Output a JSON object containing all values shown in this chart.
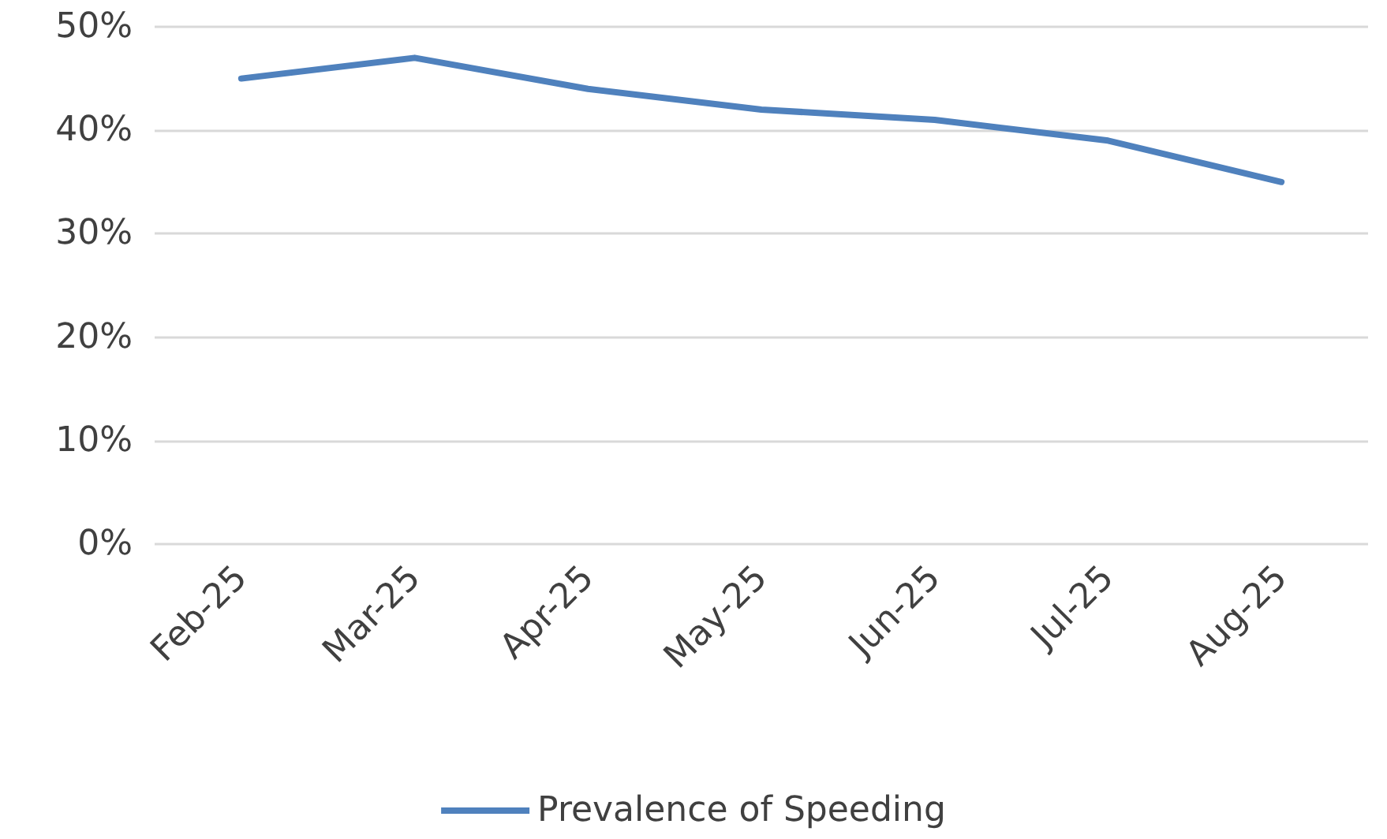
{
  "chart_data": {
    "type": "line",
    "categories": [
      "Feb-25",
      "Mar-25",
      "Apr-25",
      "May-25",
      "Jun-25",
      "Jul-25",
      "Aug-25"
    ],
    "series": [
      {
        "name": "Prevalence of Speeding",
        "color": "#4f81bd",
        "values": [
          45,
          47,
          44,
          42,
          41,
          39,
          35
        ]
      }
    ],
    "ylim": [
      0,
      50
    ],
    "yticks": [
      {
        "value": 0,
        "label": "0%"
      },
      {
        "value": 10,
        "label": "10%"
      },
      {
        "value": 20,
        "label": "20%"
      },
      {
        "value": 30,
        "label": "30%"
      },
      {
        "value": 40,
        "label": "40%"
      },
      {
        "value": 50,
        "label": "50%"
      }
    ],
    "grid": "y",
    "legend": "bottom",
    "marker": "none",
    "line_style": "solid"
  }
}
